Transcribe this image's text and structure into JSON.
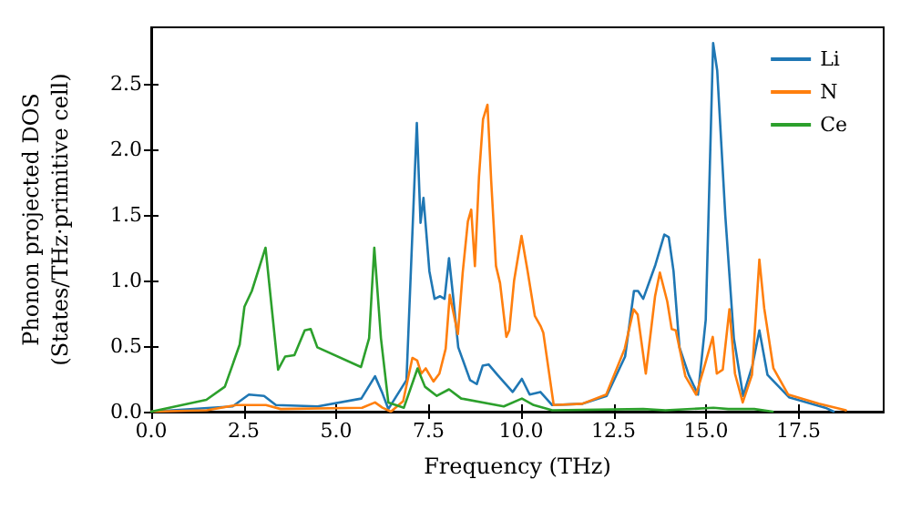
{
  "chart_data": {
    "type": "line",
    "xlabel": "Frequency (THz)",
    "ylabel": "Phonon projected DOS\n(States/THz·primitive cell)",
    "xlim": [
      0,
      19.8
    ],
    "ylim": [
      0,
      2.93
    ],
    "xticks": [
      {
        "value": 0,
        "label": "0.0"
      },
      {
        "value": 2.5,
        "label": "2.5"
      },
      {
        "value": 5,
        "label": "5.0"
      },
      {
        "value": 7.5,
        "label": "7.5"
      },
      {
        "value": 10,
        "label": "10.0"
      },
      {
        "value": 12.5,
        "label": "12.5"
      },
      {
        "value": 15,
        "label": "15.0"
      },
      {
        "value": 17.5,
        "label": "17.5"
      }
    ],
    "yticks": [
      {
        "value": 0,
        "label": "0.0"
      },
      {
        "value": 0.5,
        "label": "0.5"
      },
      {
        "value": 1,
        "label": "1.0"
      },
      {
        "value": 1.5,
        "label": "1.5"
      },
      {
        "value": 2,
        "label": "2.0"
      },
      {
        "value": 2.5,
        "label": "2.5"
      }
    ],
    "grid": false,
    "legend": "top right",
    "marker": "none",
    "line_style": "solid",
    "series": [
      {
        "name": "Li",
        "color": "#1f77b4",
        "x": [
          0,
          2.2,
          2.64,
          3.05,
          3.37,
          4.5,
          5.68,
          6.05,
          6.25,
          6.41,
          6.9,
          7.18,
          7.28,
          7.36,
          7.52,
          7.66,
          7.81,
          7.93,
          8.05,
          8.16,
          8.3,
          8.62,
          8.8,
          8.96,
          9.12,
          9.36,
          9.77,
          10.02,
          10.23,
          10.52,
          10.84,
          11.66,
          12.31,
          12.81,
          13.05,
          13.16,
          13.3,
          13.63,
          13.87,
          13.99,
          14.12,
          14.28,
          14.53,
          14.78,
          14.99,
          15.19,
          15.3,
          15.52,
          15.75,
          16.0,
          16.25,
          16.44,
          16.66,
          17.24,
          18.22,
          18.45
        ],
        "values": [
          0,
          0.04,
          0.13,
          0.12,
          0.05,
          0.04,
          0.1,
          0.27,
          0.14,
          0.02,
          0.24,
          2.2,
          1.44,
          1.63,
          1.07,
          0.86,
          0.88,
          0.86,
          1.17,
          0.88,
          0.49,
          0.24,
          0.21,
          0.35,
          0.36,
          0.28,
          0.15,
          0.25,
          0.13,
          0.15,
          0.05,
          0.06,
          0.12,
          0.42,
          0.92,
          0.92,
          0.86,
          1.12,
          1.35,
          1.33,
          1.07,
          0.49,
          0.28,
          0.13,
          0.7,
          2.81,
          2.6,
          1.49,
          0.56,
          0.12,
          0.35,
          0.62,
          0.28,
          0.11,
          0.03,
          0
        ]
      },
      {
        "name": "N",
        "color": "#ff7f0e",
        "x": [
          0,
          1.5,
          2.3,
          3.1,
          3.5,
          5.7,
          6.05,
          6.25,
          6.48,
          6.81,
          7.06,
          7.19,
          7.3,
          7.42,
          7.63,
          7.79,
          7.96,
          8.07,
          8.29,
          8.42,
          8.56,
          8.65,
          8.75,
          8.86,
          8.97,
          9.09,
          9.19,
          9.32,
          9.43,
          9.6,
          9.68,
          9.81,
          10.01,
          10.17,
          10.37,
          10.53,
          10.6,
          10.88,
          11.65,
          12.3,
          12.8,
          13.04,
          13.15,
          13.37,
          13.62,
          13.75,
          13.95,
          14.07,
          14.18,
          14.44,
          14.73,
          14.93,
          15.18,
          15.29,
          15.45,
          15.63,
          15.78,
          15.99,
          16.24,
          16.44,
          16.57,
          16.82,
          17.22,
          18.05,
          18.78
        ],
        "values": [
          0,
          0.01,
          0.05,
          0.05,
          0.02,
          0.03,
          0.07,
          0.03,
          0,
          0.08,
          0.41,
          0.39,
          0.29,
          0.33,
          0.23,
          0.29,
          0.48,
          0.89,
          0.59,
          1.06,
          1.45,
          1.54,
          1.11,
          1.79,
          2.23,
          2.34,
          1.76,
          1.11,
          0.98,
          0.57,
          0.62,
          1.0,
          1.34,
          1.08,
          0.73,
          0.65,
          0.6,
          0.05,
          0.06,
          0.13,
          0.48,
          0.78,
          0.74,
          0.29,
          0.88,
          1.06,
          0.84,
          0.63,
          0.62,
          0.27,
          0.13,
          0.32,
          0.57,
          0.29,
          0.32,
          0.78,
          0.29,
          0.07,
          0.28,
          1.16,
          0.79,
          0.33,
          0.13,
          0.06,
          0.01
        ]
      },
      {
        "name": "Ce",
        "color": "#2ca02c",
        "x": [
          0,
          1.49,
          1.99,
          2.39,
          2.52,
          2.72,
          3.09,
          3.43,
          3.62,
          3.87,
          4.15,
          4.31,
          4.49,
          5.67,
          5.89,
          6.03,
          6.21,
          6.41,
          6.83,
          7.2,
          7.4,
          7.72,
          8.05,
          8.38,
          9.53,
          10.02,
          10.34,
          10.84,
          13.3,
          13.9,
          15.2,
          15.6,
          16.3,
          16.8
        ],
        "values": [
          0,
          0.09,
          0.19,
          0.51,
          0.8,
          0.92,
          1.25,
          0.32,
          0.42,
          0.43,
          0.62,
          0.63,
          0.49,
          0.34,
          0.56,
          1.25,
          0.56,
          0.07,
          0.03,
          0.33,
          0.19,
          0.12,
          0.17,
          0.1,
          0.04,
          0.1,
          0.05,
          0.01,
          0.02,
          0.01,
          0.03,
          0.02,
          0.02,
          0
        ]
      }
    ]
  }
}
